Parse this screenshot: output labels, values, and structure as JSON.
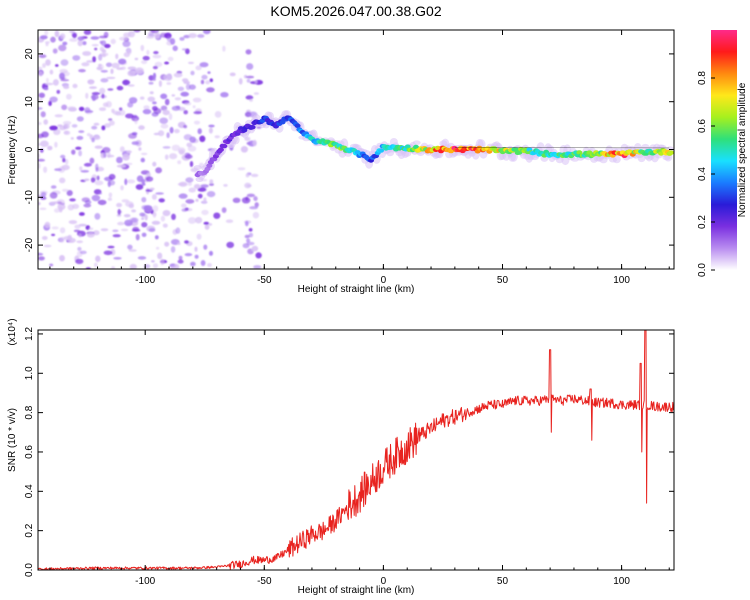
{
  "figure": {
    "title": "KOM5.2026.047.00.38.G02"
  },
  "colors": {
    "text": "#000000",
    "axis": "#000000",
    "snr_line": "#e8231f",
    "speckle_light": "#d9c2f5",
    "speckle_mid": "#a77cf0",
    "speckle_dark": "#7a2fe0"
  },
  "chart_data": [
    {
      "id": "spectrogram",
      "type": "heatmap",
      "title": "KOM5.2026.047.00.38.G02",
      "xlabel": "Height of straight line (km)",
      "ylabel": "Frequency (Hz)",
      "xlim": [
        -145,
        122
      ],
      "ylim": [
        -25,
        25
      ],
      "xticks": [
        -100,
        -50,
        0,
        50,
        100
      ],
      "yticks": [
        -20,
        -10,
        0,
        10,
        20
      ],
      "colorbar": {
        "label": "Normalized spectral amplitude",
        "range": [
          0,
          1
        ],
        "ticks": [
          0.0,
          0.2,
          0.4,
          0.6,
          0.8
        ],
        "tick_labels": [
          "0.0",
          "0.2",
          "0.4",
          "0.6",
          "0.8"
        ],
        "colormap": [
          "#ffffff",
          "#b98cf0",
          "#7a2fe0",
          "#2a1bd8",
          "#1a7cff",
          "#19e0ff",
          "#2fe07a",
          "#a6f01e",
          "#ffe81a",
          "#ff8a10",
          "#ff1a1a",
          "#ff2a8a"
        ]
      },
      "noise_region_km": [
        -145,
        -52
      ],
      "signal_ridge": {
        "x": [
          -75,
          -70,
          -65,
          -60,
          -55,
          -50,
          -45,
          -40,
          -35,
          -30,
          -25,
          -20,
          -15,
          -10,
          -5,
          0,
          10,
          20,
          30,
          40,
          50,
          60,
          70,
          80,
          90,
          100,
          110,
          120
        ],
        "y": [
          -5,
          -1,
          2,
          4,
          5,
          6.5,
          5,
          7,
          4,
          2,
          1.5,
          1,
          0,
          -1,
          -2,
          0.5,
          0.3,
          0,
          0,
          0,
          -0.3,
          -0.3,
          -1,
          -1,
          -1,
          -1,
          -0.5,
          -0.5
        ],
        "amplitude": [
          0.12,
          0.18,
          0.2,
          0.22,
          0.25,
          0.3,
          0.28,
          0.3,
          0.35,
          0.45,
          0.55,
          0.6,
          0.5,
          0.4,
          0.3,
          0.45,
          0.55,
          0.75,
          0.95,
          0.85,
          0.7,
          0.55,
          0.5,
          0.55,
          0.6,
          0.9,
          0.55,
          0.7
        ]
      }
    },
    {
      "id": "snr",
      "type": "line",
      "xlabel": "Height of straight line (km)",
      "ylabel": "SNR (10 * v/v)",
      "y_scale_label": "(x10⁴)",
      "xlim": [
        -145,
        122
      ],
      "ylim": [
        0,
        1.22
      ],
      "xticks": [
        -100,
        -50,
        0,
        50,
        100
      ],
      "yticks": [
        0.0,
        0.2,
        0.4,
        0.6,
        0.8,
        1.0,
        1.2
      ],
      "ytick_labels": [
        "0.0",
        "0.2",
        "0.4",
        "0.6",
        "0.8",
        "1.0",
        "1.2"
      ],
      "series": [
        {
          "name": "SNR",
          "x": [
            -145,
            -120,
            -100,
            -80,
            -70,
            -60,
            -55,
            -50,
            -45,
            -40,
            -35,
            -30,
            -25,
            -20,
            -15,
            -10,
            -5,
            0,
            5,
            10,
            15,
            20,
            25,
            30,
            35,
            40,
            45,
            50,
            55,
            60,
            65,
            70,
            75,
            80,
            85,
            90,
            95,
            100,
            105,
            110,
            115,
            122
          ],
          "y": [
            0.005,
            0.01,
            0.01,
            0.01,
            0.015,
            0.03,
            0.05,
            0.05,
            0.06,
            0.1,
            0.14,
            0.18,
            0.2,
            0.25,
            0.32,
            0.38,
            0.45,
            0.52,
            0.58,
            0.63,
            0.68,
            0.72,
            0.76,
            0.78,
            0.8,
            0.82,
            0.84,
            0.84,
            0.86,
            0.86,
            0.86,
            0.87,
            0.86,
            0.87,
            0.86,
            0.85,
            0.85,
            0.84,
            0.84,
            0.84,
            0.83,
            0.83
          ],
          "spikes": [
            {
              "x": 70,
              "high": 1.12,
              "low": 0.7
            },
            {
              "x": 87,
              "high": 0.92,
              "low": 0.66
            },
            {
              "x": 108,
              "high": 1.05,
              "low": 0.6
            },
            {
              "x": 110,
              "high": 1.22,
              "low": 0.34
            }
          ]
        }
      ]
    }
  ]
}
